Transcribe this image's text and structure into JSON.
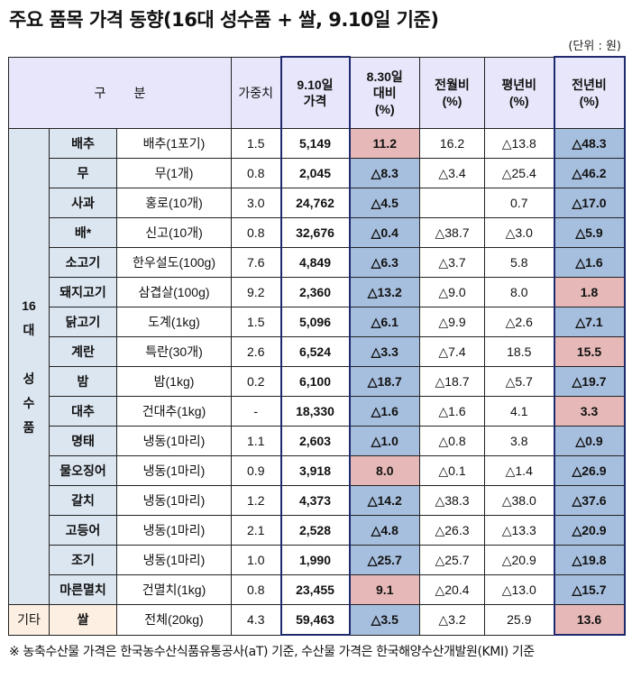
{
  "title": "주요 품목 가격 동향(16대 성수품 + 쌀, 9.10일 기준)",
  "unit": "(단위 : 원)",
  "headers": {
    "category": "구        분",
    "weight": "가중치",
    "price": "9.10일\n가격",
    "vs830": "8.30일\n대비\n(%)",
    "mom": "전월비\n(%)",
    "avg": "평년비\n(%)",
    "yoy": "전년비\n(%)"
  },
  "group_label": "16\n대\n\n성\n수\n품",
  "etc_label": "기타",
  "rows": [
    {
      "item": "배추",
      "spec": "배추(1포기)",
      "weight": "1.5",
      "price": "5,149",
      "vs830": "11.2",
      "vs830_color": "pink",
      "mom": "16.2",
      "avg": "△13.8",
      "yoy": "△48.3",
      "yoy_color": "blue"
    },
    {
      "item": "무",
      "spec": "무(1개)",
      "weight": "0.8",
      "price": "2,045",
      "vs830": "△8.3",
      "vs830_color": "blue",
      "mom": "△3.4",
      "avg": "△25.4",
      "yoy": "△46.2",
      "yoy_color": "blue"
    },
    {
      "item": "사과",
      "spec": "홍로(10개)",
      "weight": "3.0",
      "price": "24,762",
      "vs830": "△4.5",
      "vs830_color": "blue",
      "mom": "",
      "avg": "0.7",
      "yoy": "△17.0",
      "yoy_color": "blue"
    },
    {
      "item": "배*",
      "spec": "신고(10개)",
      "weight": "0.8",
      "price": "32,676",
      "vs830": "△0.4",
      "vs830_color": "blue",
      "mom": "△38.7",
      "avg": "△3.0",
      "yoy": "△5.9",
      "yoy_color": "blue"
    },
    {
      "item": "소고기",
      "spec": "한우설도(100g)",
      "weight": "7.6",
      "price": "4,849",
      "vs830": "△6.3",
      "vs830_color": "blue",
      "mom": "△3.7",
      "avg": "5.8",
      "yoy": "△1.6",
      "yoy_color": "blue"
    },
    {
      "item": "돼지고기",
      "spec": "삼겹살(100g)",
      "weight": "9.2",
      "price": "2,360",
      "vs830": "△13.2",
      "vs830_color": "blue",
      "mom": "△9.0",
      "avg": "8.0",
      "yoy": "1.8",
      "yoy_color": "pink"
    },
    {
      "item": "닭고기",
      "spec": "도계(1kg)",
      "weight": "1.5",
      "price": "5,096",
      "vs830": "△6.1",
      "vs830_color": "blue",
      "mom": "△9.9",
      "avg": "△2.6",
      "yoy": "△7.1",
      "yoy_color": "blue"
    },
    {
      "item": "계란",
      "spec": "특란(30개)",
      "weight": "2.6",
      "price": "6,524",
      "vs830": "△3.3",
      "vs830_color": "blue",
      "mom": "△7.4",
      "avg": "18.5",
      "yoy": "15.5",
      "yoy_color": "pink"
    },
    {
      "item": "밤",
      "spec": "밤(1kg)",
      "weight": "0.2",
      "price": "6,100",
      "vs830": "△18.7",
      "vs830_color": "blue",
      "mom": "△18.7",
      "avg": "△5.7",
      "yoy": "△19.7",
      "yoy_color": "blue"
    },
    {
      "item": "대추",
      "spec": "건대추(1kg)",
      "weight": "-",
      "price": "18,330",
      "vs830": "△1.6",
      "vs830_color": "blue",
      "mom": "△1.6",
      "avg": "4.1",
      "yoy": "3.3",
      "yoy_color": "pink"
    },
    {
      "item": "명태",
      "spec": "냉동(1마리)",
      "weight": "1.1",
      "price": "2,603",
      "vs830": "△1.0",
      "vs830_color": "blue",
      "mom": "△0.8",
      "avg": "3.8",
      "yoy": "△0.9",
      "yoy_color": "blue"
    },
    {
      "item": "물오징어",
      "spec": "냉동(1마리)",
      "weight": "0.9",
      "price": "3,918",
      "vs830": "8.0",
      "vs830_color": "pink",
      "mom": "△0.1",
      "avg": "△1.4",
      "yoy": "△26.9",
      "yoy_color": "blue"
    },
    {
      "item": "갈치",
      "spec": "냉동(1마리)",
      "weight": "1.2",
      "price": "4,373",
      "vs830": "△14.2",
      "vs830_color": "blue",
      "mom": "△38.3",
      "avg": "△38.0",
      "yoy": "△37.6",
      "yoy_color": "blue"
    },
    {
      "item": "고등어",
      "spec": "냉동(1마리)",
      "weight": "2.1",
      "price": "2,528",
      "vs830": "△4.8",
      "vs830_color": "blue",
      "mom": "△26.3",
      "avg": "△13.3",
      "yoy": "△20.9",
      "yoy_color": "blue"
    },
    {
      "item": "조기",
      "spec": "냉동(1마리)",
      "weight": "1.0",
      "price": "1,990",
      "vs830": "△25.7",
      "vs830_color": "blue",
      "mom": "△25.7",
      "avg": "△20.9",
      "yoy": "△19.8",
      "yoy_color": "blue"
    },
    {
      "item": "마른멸치",
      "spec": "건멸치(1kg)",
      "weight": "0.8",
      "price": "23,455",
      "vs830": "9.1",
      "vs830_color": "pink",
      "mom": "△20.4",
      "avg": "△13.0",
      "yoy": "△15.7",
      "yoy_color": "blue"
    },
    {
      "item": "쌀",
      "spec": "전체(20kg)",
      "weight": "4.3",
      "price": "59,463",
      "vs830": "△3.5",
      "vs830_color": "blue",
      "mom": "△3.2",
      "avg": "25.9",
      "yoy": "13.6",
      "yoy_color": "pink"
    }
  ],
  "footnote": "※  농축수산물 가격은 한국농수산식품유통공사(aT) 기준, 수산물 가격은 한국해양수산개발원(KMI) 기준"
}
